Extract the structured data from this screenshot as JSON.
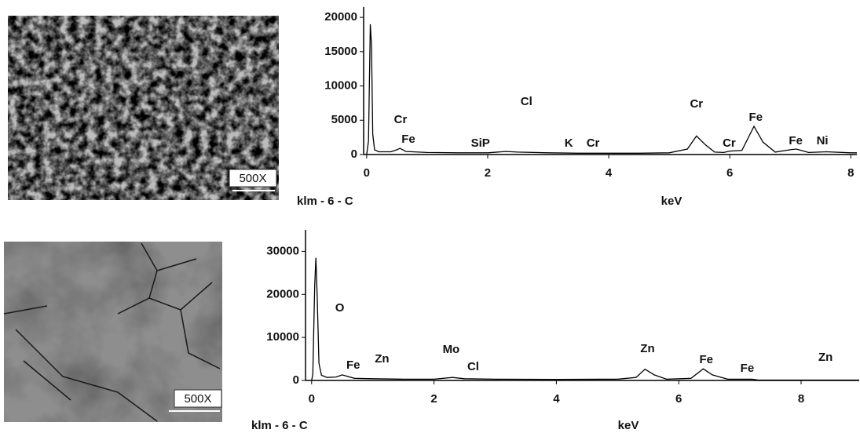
{
  "images": [
    {
      "magnification": "500X"
    },
    {
      "magnification": "500X"
    }
  ],
  "chart_data": [
    {
      "type": "line",
      "color": "#000000",
      "x_label_left": "klm - 6 - C",
      "xlabel": "keV",
      "xlim": [
        -0.05,
        8.1
      ],
      "ylim": [
        0,
        21500
      ],
      "xticks": [
        0,
        2,
        4,
        6,
        8
      ],
      "yticks": [
        0,
        5000,
        10000,
        15000,
        20000
      ],
      "x": [
        0,
        0.03,
        0.06,
        0.08,
        0.1,
        0.13,
        0.2,
        0.4,
        0.5,
        0.55,
        0.65,
        1.0,
        1.5,
        2.0,
        2.3,
        2.5,
        3.0,
        3.5,
        4.0,
        4.5,
        5.0,
        5.3,
        5.45,
        5.6,
        5.75,
        5.9,
        6.0,
        6.2,
        6.4,
        6.55,
        6.75,
        7.0,
        7.1,
        7.3,
        7.6,
        8.0,
        8.1
      ],
      "values": [
        0,
        2000,
        19000,
        16000,
        3000,
        700,
        400,
        400,
        700,
        900,
        450,
        300,
        250,
        250,
        450,
        350,
        250,
        200,
        200,
        200,
        250,
        800,
        2700,
        1400,
        350,
        300,
        500,
        600,
        4100,
        1800,
        350,
        700,
        800,
        300,
        400,
        250,
        250
      ],
      "annotations": [
        {
          "text": "Cr",
          "x": 0.56,
          "y": 5030
        },
        {
          "text": "Fe",
          "x": 0.69,
          "y": 2170
        },
        {
          "text": "SiP",
          "x": 1.88,
          "y": 1600
        },
        {
          "text": "Cl",
          "x": 2.64,
          "y": 7660
        },
        {
          "text": "K",
          "x": 3.34,
          "y": 1600
        },
        {
          "text": "Cr",
          "x": 3.74,
          "y": 1600
        },
        {
          "text": "Cr",
          "x": 5.45,
          "y": 7300
        },
        {
          "text": "Cr",
          "x": 5.99,
          "y": 1600
        },
        {
          "text": "Fe",
          "x": 6.43,
          "y": 5370
        },
        {
          "text": "Fe",
          "x": 7.09,
          "y": 1940
        },
        {
          "text": "Ni",
          "x": 7.53,
          "y": 1940
        }
      ]
    },
    {
      "type": "line",
      "color": "#000000",
      "x_label_left": "klm - 6 - C",
      "xlabel": "keV",
      "xlim": [
        -0.1,
        8.95
      ],
      "ylim": [
        0,
        35000
      ],
      "xticks": [
        0,
        2,
        4,
        6,
        8
      ],
      "yticks": [
        0,
        10000,
        20000,
        30000
      ],
      "x": [
        0,
        0.02,
        0.05,
        0.07,
        0.09,
        0.12,
        0.16,
        0.25,
        0.4,
        0.5,
        0.55,
        0.7,
        1.0,
        1.5,
        2.0,
        2.3,
        2.5,
        3.0,
        4.0,
        5.0,
        5.3,
        5.45,
        5.6,
        5.8,
        6.2,
        6.4,
        6.55,
        6.8,
        7.2,
        7.3,
        8.0,
        8.95
      ],
      "values": [
        0,
        1500,
        22000,
        28500,
        20000,
        4000,
        1200,
        700,
        800,
        1300,
        1100,
        500,
        400,
        300,
        300,
        700,
        400,
        300,
        250,
        300,
        700,
        2600,
        1300,
        300,
        500,
        2700,
        1300,
        300,
        300,
        100,
        100,
        100
      ],
      "annotations": [
        {
          "text": "O",
          "x": 0.46,
          "y": 16730
        },
        {
          "text": "Fe",
          "x": 0.68,
          "y": 3450
        },
        {
          "text": "Zn",
          "x": 1.15,
          "y": 4900
        },
        {
          "text": "Mo",
          "x": 2.28,
          "y": 7090
        },
        {
          "text": "Cl",
          "x": 2.64,
          "y": 3090
        },
        {
          "text": "Zn",
          "x": 5.49,
          "y": 7270
        },
        {
          "text": "Fe",
          "x": 6.45,
          "y": 4730
        },
        {
          "text": "Fe",
          "x": 7.12,
          "y": 2730
        },
        {
          "text": "Zn",
          "x": 8.4,
          "y": 5270
        }
      ]
    }
  ]
}
